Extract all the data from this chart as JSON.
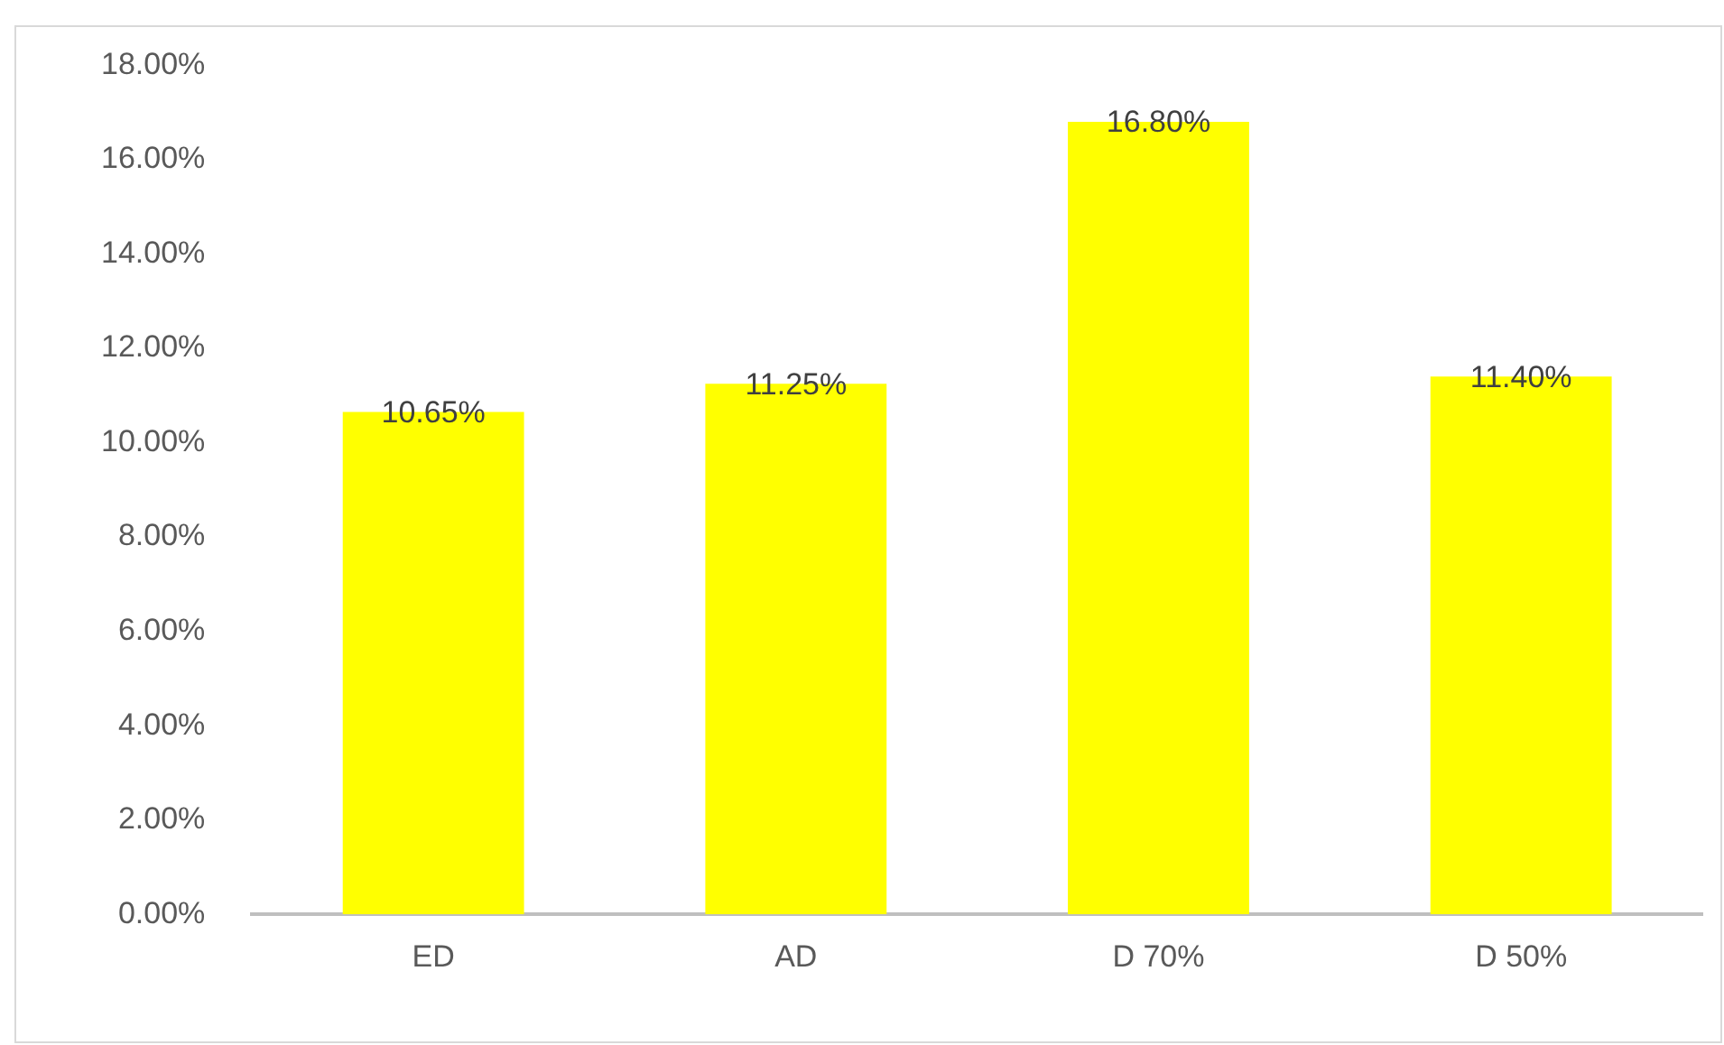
{
  "chart_data": {
    "type": "bar",
    "categories": [
      "ED",
      "AD",
      "D 70%",
      "D 50%"
    ],
    "values": [
      10.65,
      11.25,
      16.8,
      11.4
    ],
    "value_labels": [
      "10.65%",
      "11.25%",
      "16.80%",
      "11.40%"
    ],
    "color": "#ffff00",
    "ylim": [
      0,
      18
    ],
    "yticks": [
      {
        "value": 0,
        "label": "0.00%"
      },
      {
        "value": 2,
        "label": "2.00%"
      },
      {
        "value": 4,
        "label": "4.00%"
      },
      {
        "value": 6,
        "label": "6.00%"
      },
      {
        "value": 8,
        "label": "8.00%"
      },
      {
        "value": 10,
        "label": "10.00%"
      },
      {
        "value": 12,
        "label": "12.00%"
      },
      {
        "value": 14,
        "label": "14.00%"
      },
      {
        "value": 16,
        "label": "16.00%"
      },
      {
        "value": 18,
        "label": "18.00%"
      }
    ],
    "grid": false,
    "legend": false
  }
}
